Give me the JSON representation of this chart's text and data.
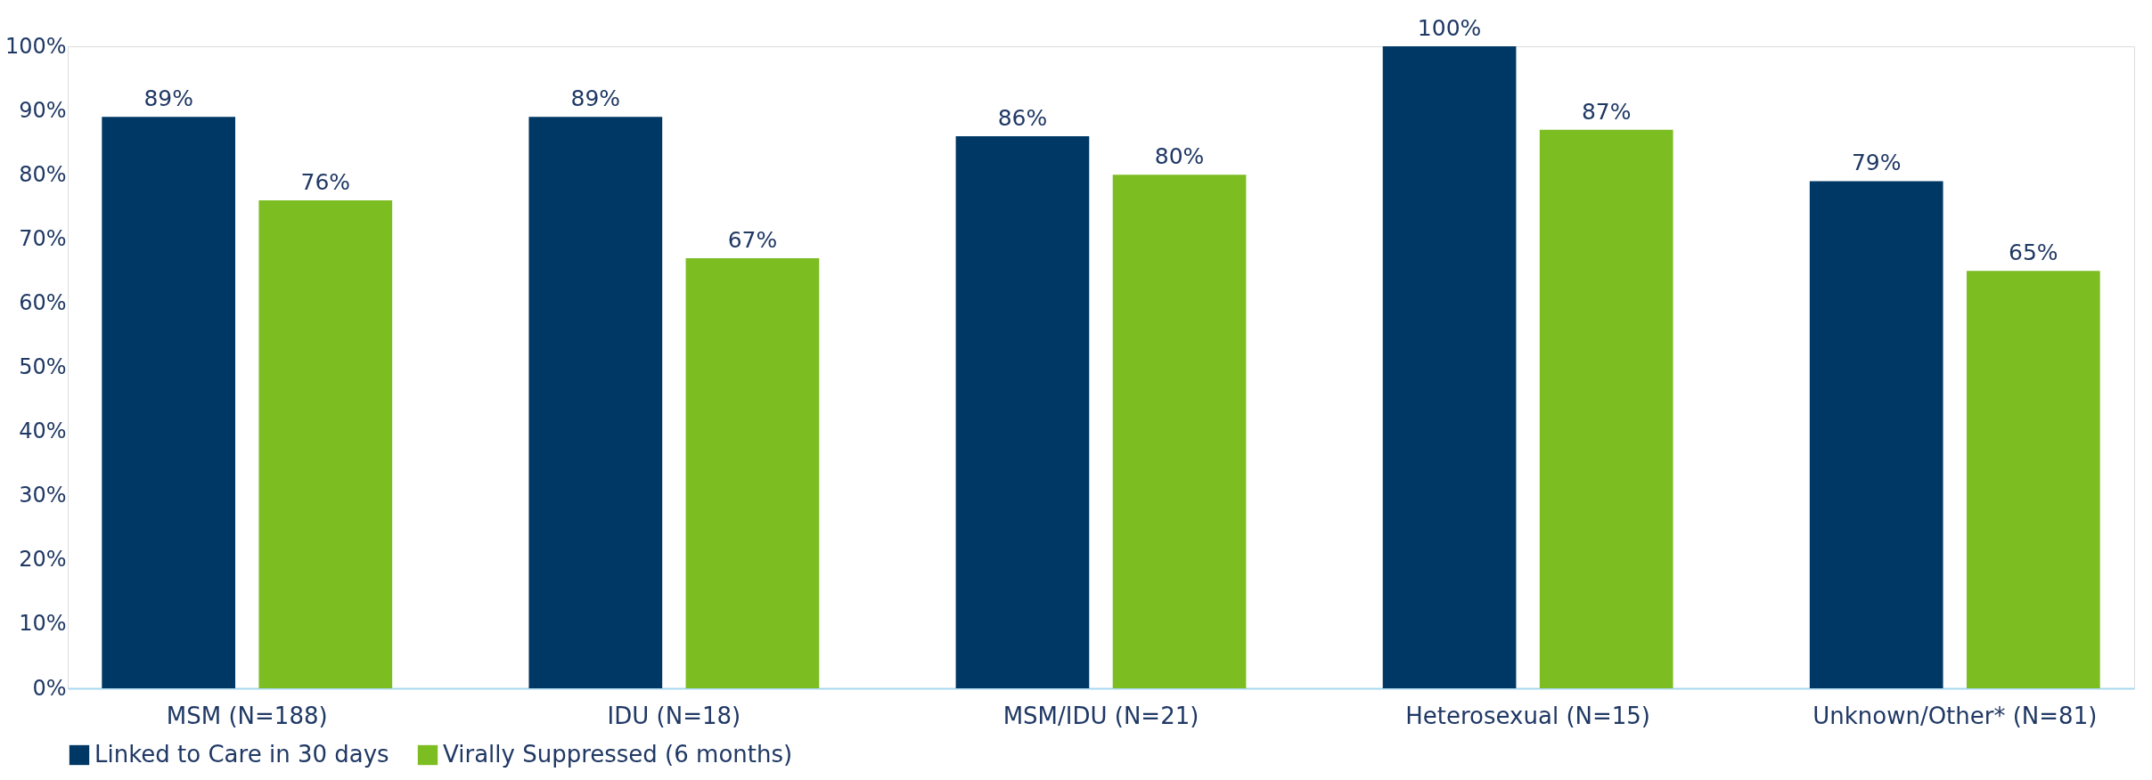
{
  "chart_data": {
    "type": "bar",
    "categories": [
      "MSM (N=188)",
      "IDU (N=18)",
      "MSM/IDU (N=21)",
      "Heterosexual (N=15)",
      "Unknown/Other* (N=81)"
    ],
    "series": [
      {
        "name": "Linked to Care in 30 days",
        "color": "#003865",
        "values": [
          89,
          89,
          86,
          100,
          79
        ],
        "value_labels": [
          "89%",
          "89%",
          "86%",
          "100%",
          "79%"
        ]
      },
      {
        "name": "Virally Suppressed (6 months)",
        "color": "#7cbd22",
        "values": [
          76,
          67,
          80,
          87,
          65
        ],
        "value_labels": [
          "76%",
          "67%",
          "80%",
          "87%",
          "65%"
        ]
      }
    ],
    "ylim": [
      0,
      100
    ],
    "yticks": [
      {
        "value": 0,
        "label": "0%"
      },
      {
        "value": 10,
        "label": "10%"
      },
      {
        "value": 20,
        "label": "20%"
      },
      {
        "value": 30,
        "label": "30%"
      },
      {
        "value": 40,
        "label": "40%"
      },
      {
        "value": 50,
        "label": "50%"
      },
      {
        "value": 60,
        "label": "60%"
      },
      {
        "value": 70,
        "label": "70%"
      },
      {
        "value": 80,
        "label": "80%"
      },
      {
        "value": 90,
        "label": "90%"
      },
      {
        "value": 100,
        "label": "100%"
      }
    ],
    "grid": false,
    "legend": "bottom"
  }
}
